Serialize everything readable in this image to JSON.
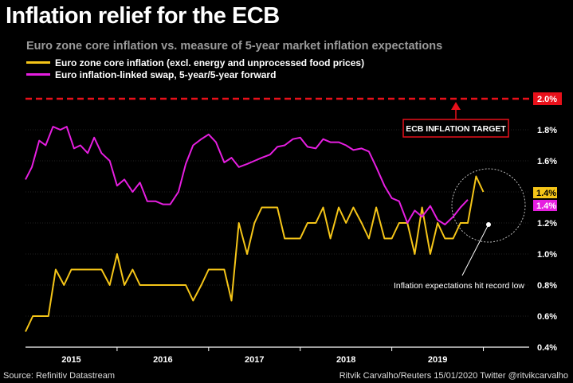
{
  "title": "Inflation relief for the ECB",
  "subtitle": "Euro zone core inflation vs. measure of 5-year market inflation expectations",
  "source": "Source: Refinitiv Datastream",
  "credit": "Ritvik Carvalho/Reuters 15/01/2020 Twitter @ritvikcarvalho",
  "colors": {
    "core": "#f5c518",
    "swap": "#e61ee0",
    "target": "#e8101a",
    "background": "#000000",
    "grid": "#444444"
  },
  "chart_data": {
    "type": "line",
    "title": "Inflation relief for the ECB",
    "xlabel": "",
    "ylabel": "",
    "ylim": [
      0.4,
      2.0
    ],
    "xlim": [
      2014.5,
      2020.0
    ],
    "yticks": [
      0.4,
      0.6,
      0.8,
      1.0,
      1.2,
      1.4,
      1.6,
      1.8,
      2.0
    ],
    "ytick_labels": [
      "0.4%",
      "0.6%",
      "0.8%",
      "1.0%",
      "1.2%",
      "1.4%",
      "1.6%",
      "1.8%",
      "2.0%"
    ],
    "xtick_labels": [
      {
        "label": "2015",
        "x": 2015.0
      },
      {
        "label": "2016",
        "x": 2016.0
      },
      {
        "label": "2017",
        "x": 2017.0
      },
      {
        "label": "2018",
        "x": 2018.0
      },
      {
        "label": "2019",
        "x": 2019.0
      }
    ],
    "target": {
      "value": 2.0,
      "label": "ECB INFLATION TARGET"
    },
    "series": [
      {
        "name": "Euro zone core inflation (excl. energy and unprocessed food prices)",
        "key": "core",
        "end_label": "1.4%",
        "points": [
          [
            2014.5,
            0.5
          ],
          [
            2014.58,
            0.6
          ],
          [
            2014.67,
            0.6
          ],
          [
            2014.75,
            0.6
          ],
          [
            2014.83,
            0.9
          ],
          [
            2014.92,
            0.8
          ],
          [
            2015.0,
            0.9
          ],
          [
            2015.08,
            0.9
          ],
          [
            2015.17,
            0.9
          ],
          [
            2015.25,
            0.9
          ],
          [
            2015.33,
            0.9
          ],
          [
            2015.42,
            0.8
          ],
          [
            2015.5,
            1.0
          ],
          [
            2015.58,
            0.8
          ],
          [
            2015.67,
            0.9
          ],
          [
            2015.75,
            0.8
          ],
          [
            2015.83,
            0.8
          ],
          [
            2015.92,
            0.8
          ],
          [
            2016.0,
            0.8
          ],
          [
            2016.08,
            0.8
          ],
          [
            2016.17,
            0.8
          ],
          [
            2016.25,
            0.8
          ],
          [
            2016.33,
            0.7
          ],
          [
            2016.42,
            0.8
          ],
          [
            2016.5,
            0.9
          ],
          [
            2016.58,
            0.9
          ],
          [
            2016.67,
            0.9
          ],
          [
            2016.75,
            0.7
          ],
          [
            2016.83,
            1.2
          ],
          [
            2016.92,
            1.0
          ],
          [
            2017.0,
            1.2
          ],
          [
            2017.08,
            1.3
          ],
          [
            2017.17,
            1.3
          ],
          [
            2017.25,
            1.3
          ],
          [
            2017.33,
            1.1
          ],
          [
            2017.42,
            1.1
          ],
          [
            2017.5,
            1.1
          ],
          [
            2017.58,
            1.2
          ],
          [
            2017.67,
            1.2
          ],
          [
            2017.75,
            1.3
          ],
          [
            2017.83,
            1.1
          ],
          [
            2017.92,
            1.3
          ],
          [
            2018.0,
            1.2
          ],
          [
            2018.08,
            1.3
          ],
          [
            2018.17,
            1.2
          ],
          [
            2018.25,
            1.1
          ],
          [
            2018.33,
            1.3
          ],
          [
            2018.42,
            1.1
          ],
          [
            2018.5,
            1.1
          ],
          [
            2018.58,
            1.2
          ],
          [
            2018.67,
            1.2
          ],
          [
            2018.75,
            1.0
          ],
          [
            2018.83,
            1.3
          ],
          [
            2018.92,
            1.0
          ],
          [
            2019.0,
            1.2
          ],
          [
            2019.08,
            1.1
          ],
          [
            2019.17,
            1.1
          ],
          [
            2019.25,
            1.2
          ],
          [
            2019.33,
            1.2
          ],
          [
            2019.42,
            1.5
          ],
          [
            2019.5,
            1.4
          ]
        ]
      },
      {
        "name": "Euro inflation-linked swap, 5-year/5-year forward",
        "key": "swap",
        "end_label": "1.4%",
        "points": [
          [
            2014.5,
            1.48
          ],
          [
            2014.57,
            1.56
          ],
          [
            2014.65,
            1.73
          ],
          [
            2014.72,
            1.7
          ],
          [
            2014.8,
            1.82
          ],
          [
            2014.88,
            1.8
          ],
          [
            2014.95,
            1.82
          ],
          [
            2015.03,
            1.68
          ],
          [
            2015.1,
            1.7
          ],
          [
            2015.18,
            1.65
          ],
          [
            2015.25,
            1.75
          ],
          [
            2015.33,
            1.65
          ],
          [
            2015.42,
            1.6
          ],
          [
            2015.5,
            1.44
          ],
          [
            2015.58,
            1.48
          ],
          [
            2015.67,
            1.4
          ],
          [
            2015.75,
            1.46
          ],
          [
            2015.83,
            1.34
          ],
          [
            2015.92,
            1.34
          ],
          [
            2016.0,
            1.32
          ],
          [
            2016.08,
            1.32
          ],
          [
            2016.17,
            1.4
          ],
          [
            2016.25,
            1.58
          ],
          [
            2016.33,
            1.7
          ],
          [
            2016.42,
            1.74
          ],
          [
            2016.5,
            1.77
          ],
          [
            2016.58,
            1.72
          ],
          [
            2016.67,
            1.59
          ],
          [
            2016.75,
            1.62
          ],
          [
            2016.83,
            1.56
          ],
          [
            2016.92,
            1.58
          ],
          [
            2017.0,
            1.6
          ],
          [
            2017.08,
            1.62
          ],
          [
            2017.17,
            1.64
          ],
          [
            2017.25,
            1.69
          ],
          [
            2017.33,
            1.7
          ],
          [
            2017.42,
            1.74
          ],
          [
            2017.5,
            1.75
          ],
          [
            2017.58,
            1.69
          ],
          [
            2017.67,
            1.68
          ],
          [
            2017.75,
            1.74
          ],
          [
            2017.83,
            1.72
          ],
          [
            2017.92,
            1.72
          ],
          [
            2018.0,
            1.7
          ],
          [
            2018.08,
            1.67
          ],
          [
            2018.17,
            1.68
          ],
          [
            2018.25,
            1.66
          ],
          [
            2018.33,
            1.56
          ],
          [
            2018.42,
            1.44
          ],
          [
            2018.5,
            1.36
          ],
          [
            2018.58,
            1.34
          ],
          [
            2018.67,
            1.2
          ],
          [
            2018.75,
            1.28
          ],
          [
            2018.83,
            1.24
          ],
          [
            2018.92,
            1.31
          ],
          [
            2019.0,
            1.22
          ],
          [
            2019.08,
            1.19
          ],
          [
            2019.17,
            1.24
          ],
          [
            2019.25,
            1.3
          ],
          [
            2019.33,
            1.35
          ]
        ]
      }
    ],
    "annotations": [
      {
        "text": "Inflation expectations hit record low",
        "x": 2019.0,
        "y": 1.19
      }
    ]
  }
}
